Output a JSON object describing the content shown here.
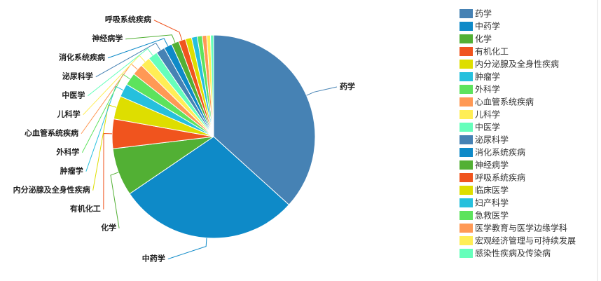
{
  "chart_data": {
    "type": "pie",
    "categories": [
      "药学",
      "中药学",
      "化学",
      "有机化工",
      "内分泌腺及全身性疾病",
      "肿瘤学",
      "外科学",
      "心血管系统疾病",
      "儿科学",
      "中医学",
      "泌尿科学",
      "消化系统疾病",
      "神经病学",
      "呼吸系统疾病",
      "临床医学",
      "妇产科学",
      "急救医学",
      "医学教育与医学边缘学科",
      "宏观经济管理与可持续发展",
      "感染性疾病及传染病"
    ],
    "values": [
      36.7,
      28.8,
      7.6,
      4.7,
      3.7,
      2.1,
      2.0,
      1.8,
      1.6,
      1.5,
      1.4,
      1.3,
      1.2,
      1.1,
      1.0,
      0.9,
      0.8,
      0.7,
      0.6,
      0.5
    ],
    "colors": [
      "#4682b4",
      "#0e8ac8",
      "#52b034",
      "#f0541e",
      "#dede00",
      "#25c0dd",
      "#5de35d",
      "#ff9955",
      "#ffee55",
      "#66ffbb",
      "#4682b4",
      "#0e8ac8",
      "#52b034",
      "#f0541e",
      "#dede00",
      "#25c0dd",
      "#5de35d",
      "#ff9955",
      "#ffee55",
      "#66ffbb"
    ],
    "legend": "right"
  }
}
